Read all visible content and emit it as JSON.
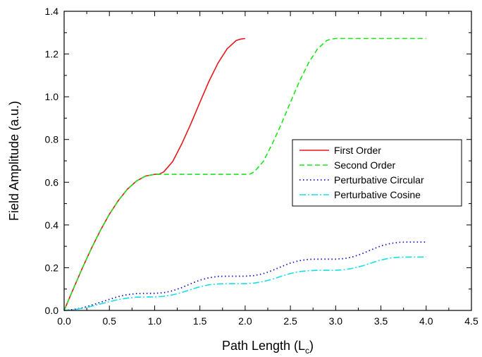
{
  "chart_data": {
    "type": "line",
    "xlabel": "Path Length (L",
    "xlabel_sub": "c",
    "xlabel_close": ")",
    "ylabel": "Field Amplitude (a.u.)",
    "xlim": [
      0,
      4.5
    ],
    "ylim": [
      0,
      1.4
    ],
    "x_ticks": [
      "0.0",
      "0.5",
      "1.0",
      "1.5",
      "2.0",
      "2.5",
      "3.0",
      "3.5",
      "4.0",
      "4.5"
    ],
    "y_ticks": [
      "0.0",
      "0.2",
      "0.4",
      "0.6",
      "0.8",
      "1.0",
      "1.2",
      "1.4"
    ],
    "grid": false,
    "legend_position": "right-center",
    "series": [
      {
        "name": "First Order",
        "color": "#e8161b",
        "style": "solid",
        "x": [
          0,
          0.1,
          0.2,
          0.3,
          0.4,
          0.5,
          0.6,
          0.7,
          0.8,
          0.9,
          1.0,
          1.05,
          1.1,
          1.2,
          1.3,
          1.4,
          1.5,
          1.6,
          1.7,
          1.8,
          1.9,
          1.95,
          2.0
        ],
        "y": [
          0,
          0.099,
          0.197,
          0.289,
          0.374,
          0.45,
          0.515,
          0.568,
          0.606,
          0.629,
          0.637,
          0.638,
          0.648,
          0.697,
          0.78,
          0.873,
          0.974,
          1.072,
          1.158,
          1.224,
          1.263,
          1.27,
          1.273
        ]
      },
      {
        "name": "Second Order",
        "color": "#1ae51a",
        "style": "dashed",
        "x": [
          0,
          0.1,
          0.2,
          0.3,
          0.4,
          0.5,
          0.6,
          0.7,
          0.8,
          0.9,
          1.0,
          1.5,
          2.0,
          2.05,
          2.1,
          2.2,
          2.3,
          2.4,
          2.5,
          2.6,
          2.7,
          2.8,
          2.9,
          2.95,
          3.0,
          3.5,
          4.0
        ],
        "y": [
          0,
          0.099,
          0.197,
          0.289,
          0.374,
          0.45,
          0.515,
          0.568,
          0.606,
          0.629,
          0.637,
          0.637,
          0.637,
          0.638,
          0.648,
          0.697,
          0.78,
          0.873,
          0.974,
          1.072,
          1.158,
          1.224,
          1.263,
          1.27,
          1.273,
          1.273,
          1.273
        ]
      },
      {
        "name": "Perturbative Circular",
        "color": "#1414c8",
        "style": "dotted",
        "x": [
          0,
          0.1,
          0.2,
          0.3,
          0.4,
          0.5,
          0.6,
          0.7,
          0.8,
          0.9,
          1.0,
          1.1,
          1.2,
          1.3,
          1.4,
          1.5,
          1.6,
          1.7,
          1.8,
          1.9,
          2.0,
          2.1,
          2.2,
          2.3,
          2.4,
          2.5,
          2.6,
          2.7,
          2.8,
          2.9,
          3.0,
          3.1,
          3.2,
          3.3,
          3.4,
          3.5,
          3.6,
          3.7,
          3.8,
          3.9,
          4.0
        ],
        "y": [
          0,
          0.004,
          0.012,
          0.024,
          0.038,
          0.052,
          0.065,
          0.074,
          0.079,
          0.08,
          0.08,
          0.083,
          0.092,
          0.107,
          0.125,
          0.142,
          0.153,
          0.159,
          0.16,
          0.16,
          0.16,
          0.163,
          0.172,
          0.187,
          0.205,
          0.222,
          0.233,
          0.239,
          0.24,
          0.24,
          0.24,
          0.243,
          0.252,
          0.267,
          0.285,
          0.302,
          0.313,
          0.319,
          0.32,
          0.32,
          0.32
        ]
      },
      {
        "name": "Perturbative Cosine",
        "color": "#15e0e8",
        "style": "dashdot",
        "x": [
          0,
          0.1,
          0.2,
          0.3,
          0.4,
          0.5,
          0.6,
          0.7,
          0.8,
          0.9,
          1.0,
          1.1,
          1.2,
          1.3,
          1.4,
          1.5,
          1.6,
          1.7,
          1.8,
          1.9,
          2.0,
          2.1,
          2.2,
          2.3,
          2.4,
          2.5,
          2.6,
          2.7,
          2.8,
          2.9,
          3.0,
          3.1,
          3.2,
          3.3,
          3.4,
          3.5,
          3.6,
          3.7,
          3.8,
          3.9,
          4.0
        ],
        "y": [
          0,
          0.003,
          0.01,
          0.019,
          0.03,
          0.041,
          0.051,
          0.058,
          0.062,
          0.063,
          0.063,
          0.066,
          0.073,
          0.084,
          0.098,
          0.111,
          0.12,
          0.124,
          0.125,
          0.125,
          0.125,
          0.128,
          0.135,
          0.146,
          0.16,
          0.173,
          0.182,
          0.186,
          0.188,
          0.188,
          0.188,
          0.191,
          0.198,
          0.209,
          0.223,
          0.236,
          0.245,
          0.249,
          0.25,
          0.25,
          0.25
        ]
      }
    ]
  }
}
